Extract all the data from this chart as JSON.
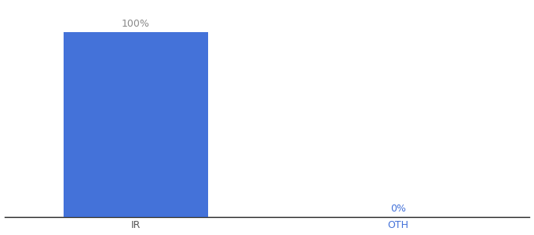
{
  "categories": [
    "IR",
    "OTH"
  ],
  "values": [
    100,
    0
  ],
  "bar_color": "#4472d9",
  "value_label_color_ir": "#888888",
  "value_label_color_oth": "#4472d9",
  "tick_color_ir": "#555555",
  "tick_color_oth": "#4472d9",
  "value_labels": [
    "100%",
    "0%"
  ],
  "background_color": "#ffffff",
  "ylim": [
    0,
    115
  ],
  "bar_width": 0.55,
  "label_fontsize": 9,
  "tick_fontsize": 9,
  "xlim": [
    -0.5,
    1.5
  ]
}
